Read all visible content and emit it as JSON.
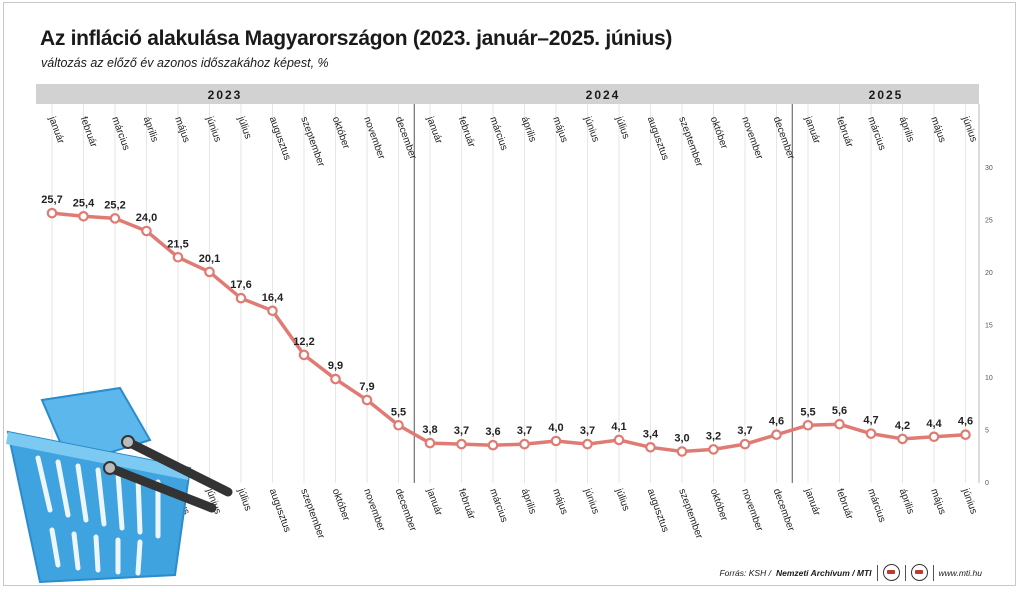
{
  "title": "Az infláció alakulása Magyarországon (2023. január–2025. június)",
  "subtitle": "változás az előző év azonos időszakához képest, %",
  "years": [
    "2023",
    "2024",
    "2025"
  ],
  "footer": {
    "source_prefix": "Forrás: KSH /",
    "source_archive": "Nemzeti Archívum / MTI",
    "website": "www.mti.hu"
  },
  "colors": {
    "line": "#e07b74",
    "band": "#d2d2d2",
    "basket": "#3fa3e0",
    "handle": "#333333"
  },
  "icons": [
    "mti-logo-icon",
    "mti-logo-icon",
    "shopping-basket-icon"
  ],
  "chart_data": {
    "type": "line",
    "title": "Az infláció alakulása Magyarországon (2023. január–2025. június)",
    "subtitle": "változás az előző év azonos időszakához képest, %",
    "categories": [
      "január",
      "február",
      "március",
      "április",
      "május",
      "június",
      "július",
      "augusztus",
      "szeptember",
      "október",
      "november",
      "december",
      "január",
      "február",
      "március",
      "április",
      "május",
      "június",
      "július",
      "augusztus",
      "szeptember",
      "október",
      "november",
      "december",
      "január",
      "február",
      "március",
      "április",
      "május",
      "június"
    ],
    "values": [
      25.7,
      25.4,
      25.2,
      24.0,
      21.5,
      20.1,
      17.6,
      16.4,
      12.2,
      9.9,
      7.9,
      5.5,
      3.8,
      3.7,
      3.6,
      3.7,
      4.0,
      3.7,
      4.1,
      3.4,
      3.0,
      3.2,
      3.7,
      4.6,
      5.5,
      5.6,
      4.7,
      4.2,
      4.4,
      4.6
    ],
    "value_labels": [
      "25,7",
      "25,4",
      "25,2",
      "24,0",
      "21,5",
      "20,1",
      "17,6",
      "16,4",
      "12,2",
      "9,9",
      "7,9",
      "5,5",
      "3,8",
      "3,7",
      "3,6",
      "3,7",
      "4,0",
      "3,7",
      "4,1",
      "3,4",
      "3,0",
      "3,2",
      "3,7",
      "4,6",
      "5,5",
      "5,6",
      "4,7",
      "4,2",
      "4,4",
      "4,6"
    ],
    "y_ticks": [
      "0",
      "5",
      "10",
      "15",
      "20",
      "25",
      "30"
    ],
    "ylim": [
      0,
      30
    ],
    "grid": true,
    "legend": "none"
  }
}
